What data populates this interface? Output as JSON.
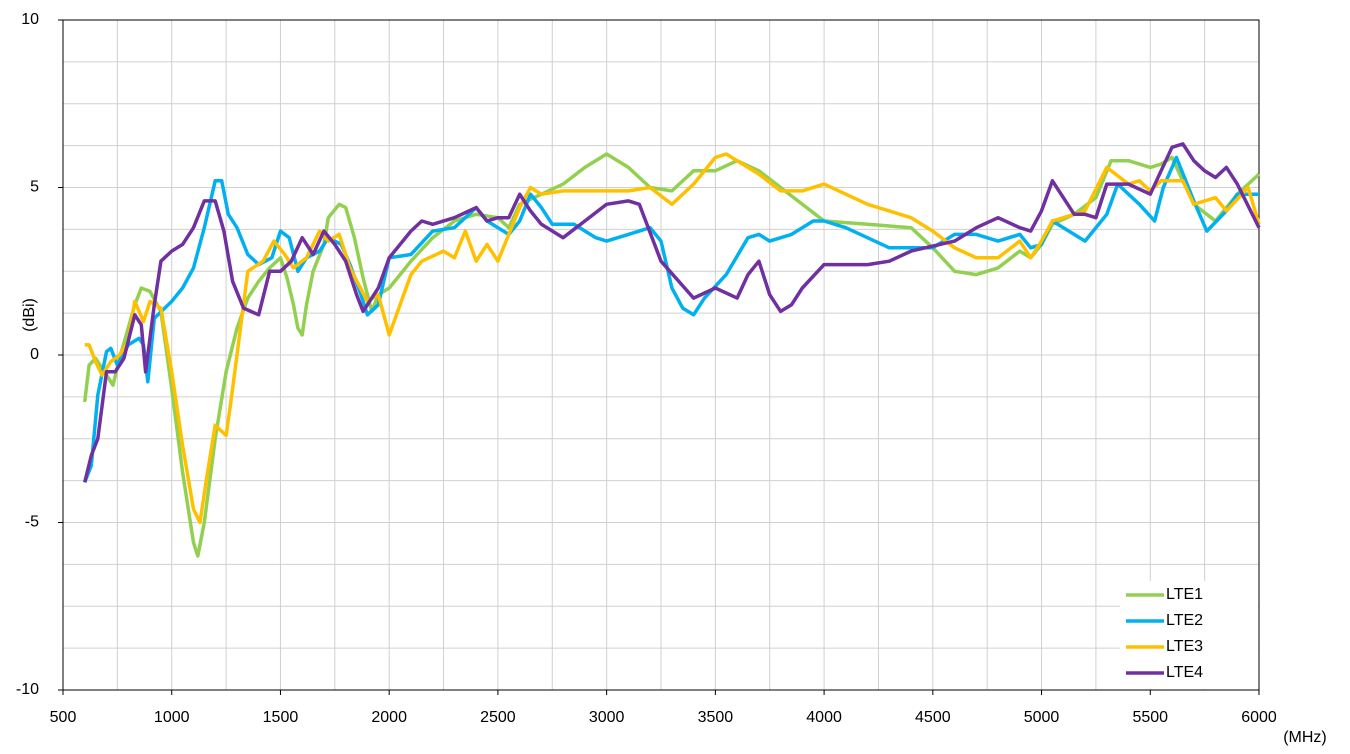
{
  "chart_data": {
    "type": "line",
    "xlabel": "(MHz)",
    "ylabel": "(dBi)",
    "xlim": [
      500,
      6000
    ],
    "ylim": [
      -10,
      10
    ],
    "xticks": [
      500,
      1000,
      1500,
      2000,
      2500,
      3000,
      3500,
      4000,
      4500,
      5000,
      5500,
      6000
    ],
    "yticks": [
      -10,
      -5,
      0,
      5,
      10
    ],
    "xgrid": [
      500,
      750,
      1000,
      1250,
      1500,
      1750,
      2000,
      2250,
      2500,
      2750,
      3000,
      3250,
      3500,
      3750,
      4000,
      4250,
      4500,
      4750,
      5000,
      5250,
      5500,
      5750,
      6000
    ],
    "ygrid": [
      -10,
      -8.75,
      -7.5,
      -6.25,
      -5,
      -3.75,
      -2.5,
      -1.25,
      0,
      1.25,
      2.5,
      3.75,
      5,
      6.25,
      7.5,
      8.75,
      10
    ],
    "grid": true,
    "legend": "lower right",
    "series": [
      {
        "name": "LTE1",
        "color": "#92d050",
        "x": [
          600,
          620,
          650,
          700,
          730,
          760,
          800,
          830,
          860,
          900,
          950,
          1000,
          1050,
          1100,
          1120,
          1150,
          1200,
          1250,
          1300,
          1350,
          1400,
          1450,
          1500,
          1530,
          1560,
          1580,
          1600,
          1620,
          1650,
          1700,
          1720,
          1770,
          1800,
          1840,
          1880,
          1920,
          1950,
          2000,
          2050,
          2100,
          2200,
          2300,
          2400,
          2500,
          2550,
          2600,
          2700,
          2800,
          2900,
          3000,
          3100,
          3200,
          3300,
          3400,
          3500,
          3600,
          3700,
          3800,
          3900,
          4000,
          4200,
          4400,
          4500,
          4600,
          4700,
          4800,
          4900,
          4950,
          5000,
          5050,
          5150,
          5250,
          5320,
          5400,
          5500,
          5550,
          5600,
          5700,
          5800,
          5900,
          6000
        ],
        "values": [
          -1.4,
          -0.3,
          -0.1,
          -0.6,
          -0.9,
          -0.1,
          0.8,
          1.5,
          2.0,
          1.9,
          1.3,
          -1,
          -3.5,
          -5.6,
          -6.0,
          -5,
          -2.5,
          -0.5,
          0.8,
          1.7,
          2.2,
          2.6,
          2.9,
          2.3,
          1.5,
          0.8,
          0.6,
          1.5,
          2.5,
          3.3,
          4.1,
          4.5,
          4.4,
          3.5,
          2.3,
          1.3,
          1.8,
          2.0,
          2.4,
          2.8,
          3.5,
          4.0,
          4.2,
          4.1,
          3.8,
          4.5,
          4.8,
          5.1,
          5.6,
          6.0,
          5.6,
          5.0,
          4.9,
          5.5,
          5.5,
          5.8,
          5.5,
          5.0,
          4.5,
          4.0,
          3.9,
          3.8,
          3.2,
          2.5,
          2.4,
          2.6,
          3.1,
          2.9,
          3.3,
          3.9,
          4.2,
          4.7,
          5.8,
          5.8,
          5.6,
          5.7,
          5.9,
          4.5,
          4.0,
          4.8,
          5.4
        ]
      },
      {
        "name": "LTE2",
        "color": "#00b0f0",
        "x": [
          600,
          630,
          660,
          700,
          720,
          750,
          800,
          850,
          870,
          890,
          920,
          1000,
          1050,
          1100,
          1150,
          1200,
          1230,
          1260,
          1300,
          1350,
          1400,
          1460,
          1500,
          1540,
          1580,
          1620,
          1680,
          1720,
          1780,
          1820,
          1870,
          1900,
          1950,
          2000,
          2100,
          2200,
          2300,
          2400,
          2450,
          2550,
          2600,
          2650,
          2700,
          2750,
          2850,
          2950,
          3000,
          3100,
          3200,
          3250,
          3300,
          3350,
          3400,
          3450,
          3550,
          3650,
          3700,
          3750,
          3850,
          3950,
          4000,
          4100,
          4300,
          4500,
          4600,
          4700,
          4800,
          4900,
          4950,
          5000,
          5050,
          5150,
          5200,
          5300,
          5350,
          5450,
          5520,
          5560,
          5620,
          5700,
          5760,
          5850,
          5900,
          6000
        ],
        "values": [
          -3.8,
          -3.3,
          -1.2,
          0.1,
          0.2,
          -0.3,
          0.3,
          0.5,
          0.3,
          -0.8,
          1.1,
          1.6,
          2.0,
          2.6,
          3.8,
          5.2,
          5.2,
          4.2,
          3.8,
          3.0,
          2.7,
          2.9,
          3.7,
          3.5,
          2.5,
          2.9,
          3.1,
          3.5,
          3.3,
          2.7,
          1.8,
          1.2,
          1.5,
          2.9,
          3.0,
          3.7,
          3.8,
          4.4,
          4.0,
          3.6,
          4.0,
          4.8,
          4.4,
          3.9,
          3.9,
          3.5,
          3.4,
          3.6,
          3.8,
          3.4,
          2.0,
          1.4,
          1.2,
          1.7,
          2.4,
          3.5,
          3.6,
          3.4,
          3.6,
          4.0,
          4.0,
          3.8,
          3.2,
          3.2,
          3.6,
          3.6,
          3.4,
          3.6,
          3.2,
          3.3,
          4.0,
          3.6,
          3.4,
          4.2,
          5.1,
          4.5,
          4.0,
          5.0,
          5.9,
          4.6,
          3.7,
          4.3,
          4.8,
          4.8
        ]
      },
      {
        "name": "LTE3",
        "color": "#ffc000",
        "x": [
          600,
          620,
          650,
          680,
          720,
          760,
          800,
          830,
          870,
          900,
          950,
          1000,
          1050,
          1100,
          1130,
          1160,
          1200,
          1250,
          1270,
          1300,
          1350,
          1420,
          1470,
          1520,
          1560,
          1620,
          1680,
          1720,
          1770,
          1820,
          1860,
          1900,
          1950,
          2000,
          2050,
          2100,
          2150,
          2250,
          2300,
          2350,
          2400,
          2450,
          2500,
          2550,
          2600,
          2650,
          2700,
          2800,
          3000,
          3100,
          3200,
          3300,
          3400,
          3500,
          3550,
          3600,
          3700,
          3800,
          3900,
          4000,
          4100,
          4200,
          4300,
          4400,
          4500,
          4600,
          4700,
          4800,
          4900,
          4950,
          5000,
          5050,
          5150,
          5200,
          5300,
          5400,
          5450,
          5500,
          5550,
          5650,
          5700,
          5800,
          5850,
          5950,
          6000
        ],
        "values": [
          0.3,
          0.3,
          -0.2,
          -0.6,
          -0.2,
          0.0,
          0.4,
          1.6,
          1.0,
          1.6,
          1.4,
          -0.5,
          -2.7,
          -4.6,
          -5.0,
          -3.7,
          -2.1,
          -2.4,
          -1.5,
          0.0,
          2.5,
          2.8,
          3.4,
          3.0,
          2.6,
          2.9,
          3.7,
          3.4,
          3.6,
          2.6,
          2.1,
          1.6,
          1.8,
          0.6,
          1.5,
          2.4,
          2.8,
          3.1,
          2.9,
          3.7,
          2.8,
          3.3,
          2.8,
          3.6,
          4.4,
          5.0,
          4.8,
          4.9,
          4.9,
          4.9,
          5.0,
          4.5,
          5.1,
          5.9,
          6.0,
          5.8,
          5.4,
          4.9,
          4.9,
          5.1,
          4.8,
          4.5,
          4.3,
          4.1,
          3.7,
          3.2,
          2.9,
          2.9,
          3.4,
          2.9,
          3.4,
          4.0,
          4.2,
          4.3,
          5.6,
          5.1,
          5.2,
          4.9,
          5.2,
          5.2,
          4.5,
          4.7,
          4.3,
          5.0,
          3.9
        ]
      },
      {
        "name": "LTE4",
        "color": "#7030a0",
        "x": [
          600,
          630,
          660,
          700,
          740,
          780,
          830,
          860,
          880,
          920,
          950,
          1000,
          1050,
          1100,
          1150,
          1200,
          1240,
          1280,
          1330,
          1400,
          1450,
          1500,
          1550,
          1600,
          1650,
          1700,
          1750,
          1800,
          1850,
          1880,
          1950,
          2000,
          2100,
          2150,
          2200,
          2300,
          2400,
          2450,
          2500,
          2550,
          2600,
          2650,
          2700,
          2800,
          2900,
          3000,
          3100,
          3150,
          3250,
          3400,
          3500,
          3600,
          3650,
          3700,
          3750,
          3800,
          3850,
          3900,
          4000,
          4200,
          4300,
          4400,
          4600,
          4700,
          4800,
          4900,
          4950,
          5000,
          5050,
          5150,
          5200,
          5250,
          5300,
          5400,
          5500,
          5550,
          5600,
          5650,
          5700,
          5750,
          5800,
          5850,
          5900,
          6000
        ],
        "values": [
          -3.8,
          -3.0,
          -2.5,
          -0.5,
          -0.5,
          -0.1,
          1.2,
          0.9,
          -0.5,
          1.5,
          2.8,
          3.1,
          3.3,
          3.8,
          4.6,
          4.6,
          3.7,
          2.2,
          1.4,
          1.2,
          2.5,
          2.5,
          2.8,
          3.5,
          3.0,
          3.7,
          3.3,
          2.8,
          1.8,
          1.3,
          2.0,
          2.9,
          3.7,
          4.0,
          3.9,
          4.1,
          4.4,
          4.0,
          4.1,
          4.1,
          4.8,
          4.3,
          3.9,
          3.5,
          4.0,
          4.5,
          4.6,
          4.5,
          2.8,
          1.7,
          2.0,
          1.7,
          2.4,
          2.8,
          1.8,
          1.3,
          1.5,
          2.0,
          2.7,
          2.7,
          2.8,
          3.1,
          3.4,
          3.8,
          4.1,
          3.8,
          3.7,
          4.3,
          5.2,
          4.2,
          4.2,
          4.1,
          5.1,
          5.1,
          4.8,
          5.5,
          6.2,
          6.3,
          5.8,
          5.5,
          5.3,
          5.6,
          5.1,
          3.8
        ]
      }
    ]
  }
}
